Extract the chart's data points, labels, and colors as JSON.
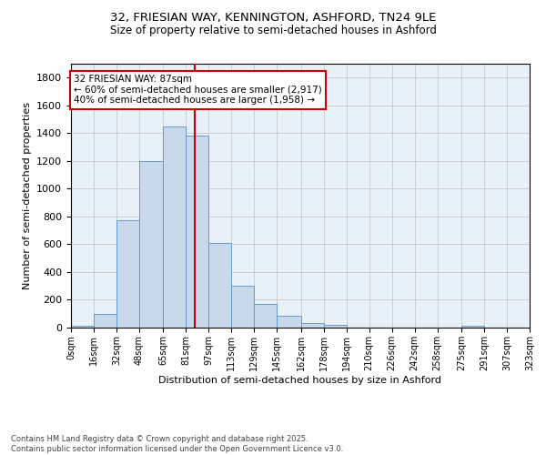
{
  "title1": "32, FRIESIAN WAY, KENNINGTON, ASHFORD, TN24 9LE",
  "title2": "Size of property relative to semi-detached houses in Ashford",
  "xlabel": "Distribution of semi-detached houses by size in Ashford",
  "ylabel": "Number of semi-detached properties",
  "footnote1": "Contains HM Land Registry data © Crown copyright and database right 2025.",
  "footnote2": "Contains public sector information licensed under the Open Government Licence v3.0.",
  "annotation_title": "32 FRIESIAN WAY: 87sqm",
  "annotation_line1": "← 60% of semi-detached houses are smaller (2,917)",
  "annotation_line2": "40% of semi-detached houses are larger (1,958) →",
  "property_size": 87,
  "bin_edges": [
    0,
    16,
    32,
    48,
    65,
    81,
    97,
    113,
    129,
    145,
    162,
    178,
    194,
    210,
    226,
    242,
    258,
    275,
    291,
    307,
    323
  ],
  "bar_heights": [
    15,
    100,
    775,
    1200,
    1450,
    1380,
    610,
    300,
    170,
    85,
    30,
    20,
    0,
    0,
    0,
    0,
    0,
    15,
    0,
    0
  ],
  "bar_color": "#c8d9ec",
  "bar_edge_color": "#6699cc",
  "vline_color": "#cc0000",
  "vline_x": 87,
  "annotation_box_color": "#cc0000",
  "background_color": "#ffffff",
  "ax_facecolor": "#e8f0f8",
  "grid_color": "#cccccc",
  "ylim": [
    0,
    1900
  ],
  "yticks": [
    0,
    200,
    400,
    600,
    800,
    1000,
    1200,
    1400,
    1600,
    1800
  ],
  "xlim": [
    0,
    323
  ]
}
